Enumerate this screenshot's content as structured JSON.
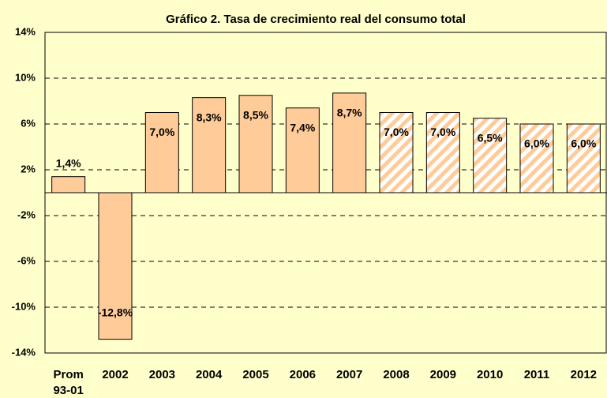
{
  "chart_data": {
    "type": "bar",
    "title": "Gráfico 2. Tasa de crecimiento real del consumo total",
    "categories": [
      "Prom 93-01",
      "2002",
      "2003",
      "2004",
      "2005",
      "2006",
      "2007",
      "2008",
      "2009",
      "2010",
      "2011",
      "2012"
    ],
    "values": [
      1.4,
      -12.8,
      7.0,
      8.3,
      8.5,
      7.4,
      8.7,
      7.0,
      7.0,
      6.5,
      6.0,
      6.0
    ],
    "value_labels": [
      "1,4%",
      "-12,8%",
      "7,0%",
      "8,3%",
      "8,5%",
      "7,4%",
      "8,7%",
      "7,0%",
      "7,0%",
      "6,5%",
      "6,0%",
      "6,0%"
    ],
    "hatched": [
      false,
      false,
      false,
      false,
      false,
      false,
      false,
      true,
      true,
      true,
      true,
      true
    ],
    "color": "#ffcc99",
    "ylim": [
      -14,
      14
    ],
    "yticks": [
      {
        "value": -14,
        "label": "-14%"
      },
      {
        "value": -10,
        "label": "-10%"
      },
      {
        "value": -6,
        "label": "-6%"
      },
      {
        "value": -2,
        "label": "-2%"
      },
      {
        "value": 2,
        "label": "2%"
      },
      {
        "value": 6,
        "label": "6%"
      },
      {
        "value": 10,
        "label": "10%"
      },
      {
        "value": 14,
        "label": "14%"
      }
    ],
    "grid": true
  }
}
